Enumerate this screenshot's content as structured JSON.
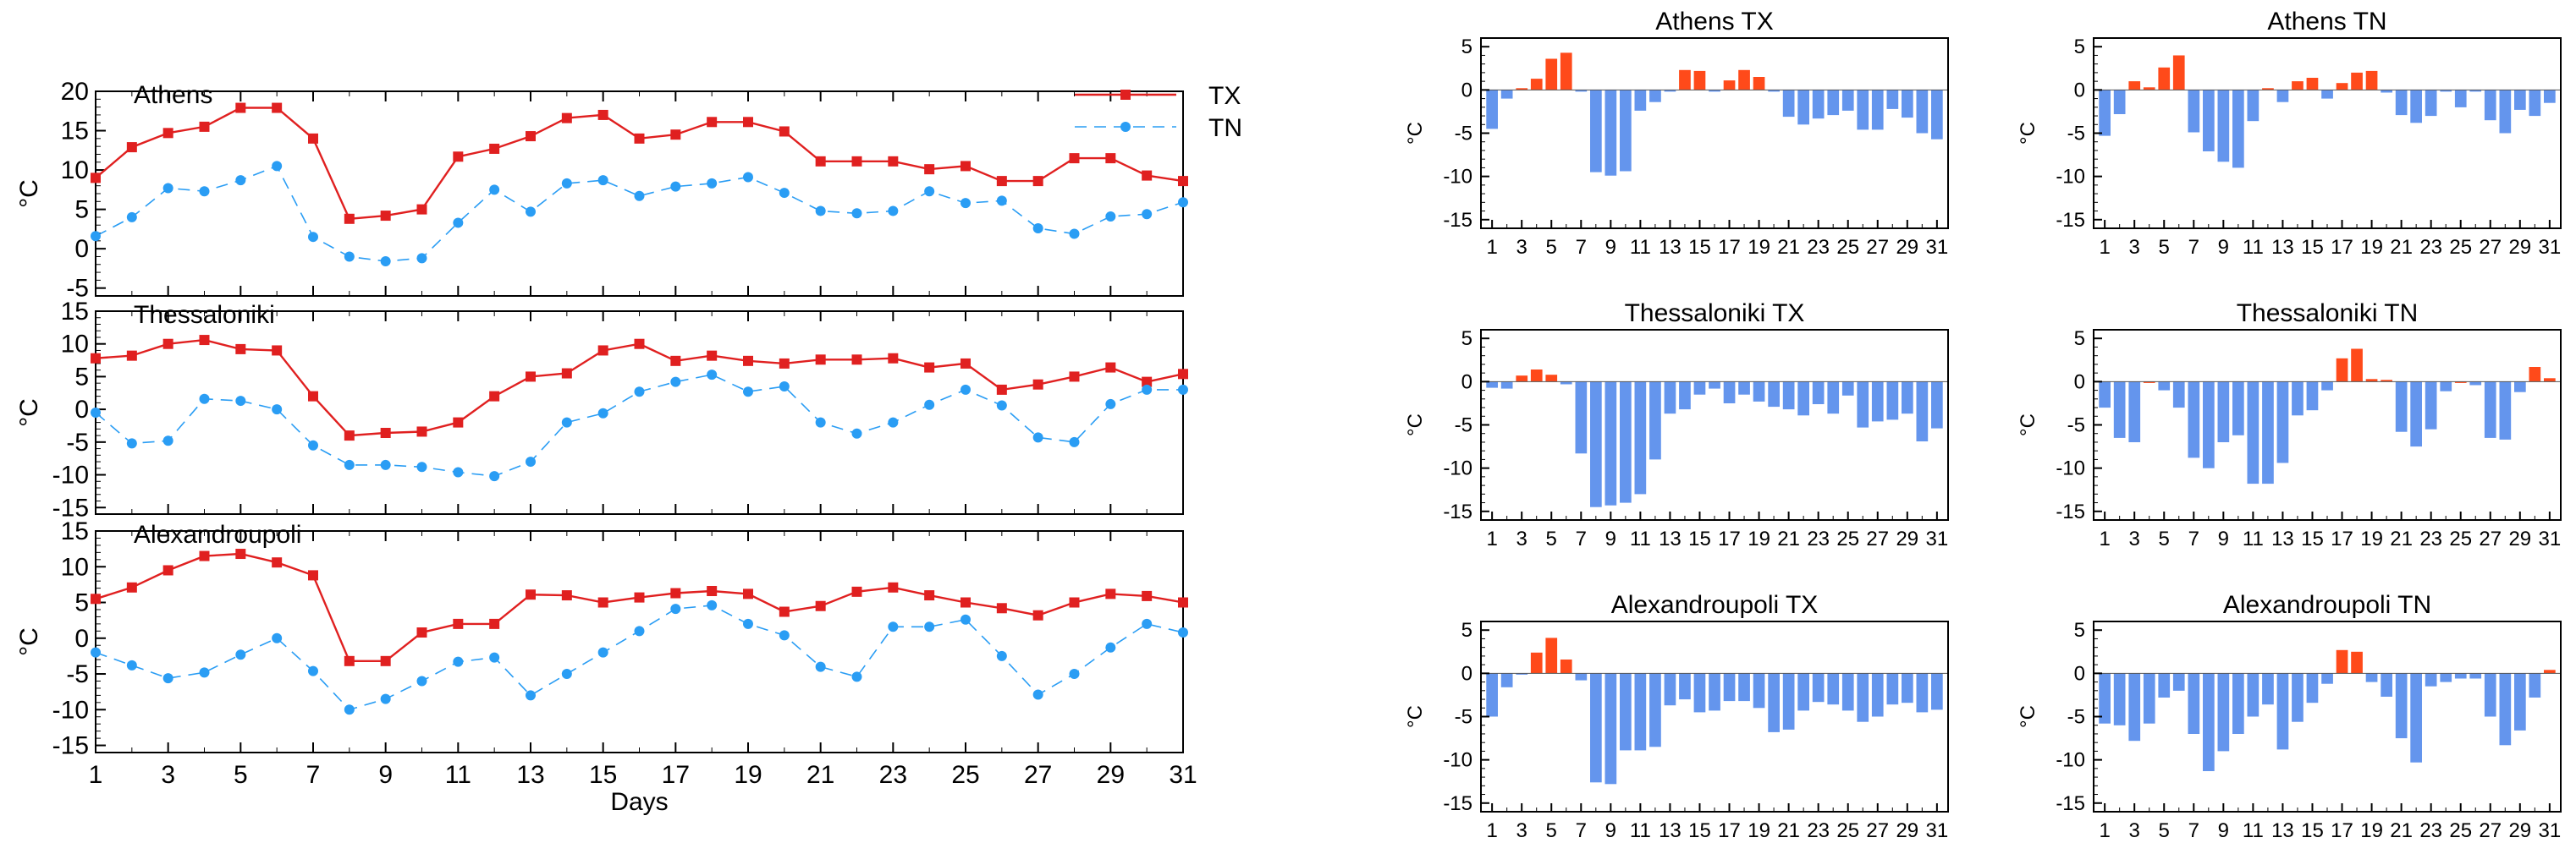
{
  "chart_data": [
    {
      "type": "line",
      "title": "Athens",
      "xlabel": "",
      "ylabel": "°C",
      "xlim": [
        1,
        31
      ],
      "ylim": [
        -6,
        20
      ],
      "yticks": [
        -5,
        0,
        5,
        10,
        15,
        20
      ],
      "xticks": [
        1,
        3,
        5,
        7,
        9,
        11,
        13,
        15,
        17,
        19,
        21,
        23,
        25,
        27,
        29,
        31
      ],
      "legend": "top-right",
      "series": [
        {
          "name": "TX",
          "color": "#e02020",
          "marker": "square",
          "dash": false,
          "values": [
            9,
            12.9,
            14.7,
            15.5,
            17.9,
            17.9,
            14,
            3.8,
            4.2,
            5,
            11.7,
            12.7,
            14.3,
            16.6,
            17,
            14,
            14.5,
            16.1,
            16.1,
            14.9,
            11.1,
            11.1,
            11.1,
            10.1,
            10.5,
            8.6,
            8.6,
            11.5,
            11.5,
            9.3,
            8.6
          ]
        },
        {
          "name": "TN",
          "color": "#2a9df4",
          "marker": "circle",
          "dash": true,
          "values": [
            1.6,
            4,
            7.7,
            7.3,
            8.7,
            10.5,
            1.5,
            -1,
            -1.6,
            -1.2,
            3.3,
            7.5,
            4.7,
            8.3,
            8.7,
            6.7,
            7.9,
            8.3,
            9.1,
            7.1,
            4.8,
            4.5,
            4.8,
            7.3,
            5.8,
            6.1,
            2.6,
            1.9,
            4.1,
            4.4,
            5.9
          ]
        }
      ]
    },
    {
      "type": "line",
      "title": "Thessaloniki",
      "xlabel": "",
      "ylabel": "°C",
      "xlim": [
        1,
        31
      ],
      "ylim": [
        -16,
        15
      ],
      "yticks": [
        -15,
        -10,
        -5,
        0,
        5,
        10,
        15
      ],
      "xticks": [
        1,
        3,
        5,
        7,
        9,
        11,
        13,
        15,
        17,
        19,
        21,
        23,
        25,
        27,
        29,
        31
      ],
      "series": [
        {
          "name": "TX",
          "color": "#e02020",
          "marker": "square",
          "dash": false,
          "values": [
            7.8,
            8.2,
            10,
            10.6,
            9.2,
            9,
            2,
            -4,
            -3.6,
            -3.4,
            -2,
            2,
            5,
            5.5,
            9,
            10,
            7.4,
            8.2,
            7.4,
            7,
            7.6,
            7.6,
            7.8,
            6.4,
            7,
            3,
            3.8,
            5,
            6.4,
            4.2,
            5.4
          ]
        },
        {
          "name": "TN",
          "color": "#2a9df4",
          "marker": "circle",
          "dash": true,
          "values": [
            -0.5,
            -5.2,
            -4.8,
            1.6,
            1.3,
            0,
            -5.5,
            -8.5,
            -8.5,
            -8.8,
            -9.6,
            -10.2,
            -8,
            -2,
            -0.6,
            2.7,
            4.2,
            5.3,
            2.7,
            3.5,
            -2,
            -3.7,
            -2,
            0.7,
            3,
            0.6,
            -4.3,
            -5,
            0.8,
            3,
            3
          ]
        }
      ]
    },
    {
      "type": "line",
      "title": "Alexandroupoli",
      "xlabel": "Days",
      "ylabel": "°C",
      "xlim": [
        1,
        31
      ],
      "ylim": [
        -16,
        15
      ],
      "yticks": [
        -15,
        -10,
        -5,
        0,
        5,
        10,
        15
      ],
      "xticks": [
        1,
        3,
        5,
        7,
        9,
        11,
        13,
        15,
        17,
        19,
        21,
        23,
        25,
        27,
        29,
        31
      ],
      "series": [
        {
          "name": "TX",
          "color": "#e02020",
          "marker": "square",
          "dash": false,
          "values": [
            5.5,
            7.1,
            9.5,
            11.5,
            11.8,
            10.6,
            8.8,
            -3.2,
            -3.2,
            0.8,
            2,
            2,
            6.1,
            6,
            5,
            5.7,
            6.3,
            6.6,
            6.2,
            3.7,
            4.5,
            6.5,
            7.1,
            6,
            5,
            4.2,
            3.2,
            5,
            6.2,
            5.9,
            5
          ]
        },
        {
          "name": "TN",
          "color": "#2a9df4",
          "marker": "circle",
          "dash": true,
          "values": [
            -2,
            -3.8,
            -5.6,
            -4.8,
            -2.3,
            0,
            -4.6,
            -10,
            -8.5,
            -6,
            -3.3,
            -2.7,
            -8,
            -5,
            -2,
            1,
            4.1,
            4.6,
            2,
            0.4,
            -4,
            -5.4,
            1.6,
            1.6,
            2.6,
            -2.5,
            -7.9,
            -5,
            -1.3,
            2,
            0.8
          ]
        }
      ]
    },
    {
      "type": "bar",
      "title": "Athens TX",
      "ylabel": "°C",
      "ylim": [
        -16,
        6
      ],
      "yticks": [
        5,
        0,
        -5,
        -10,
        -15
      ],
      "categories": [
        1,
        2,
        3,
        4,
        5,
        6,
        7,
        8,
        9,
        10,
        11,
        12,
        13,
        14,
        15,
        16,
        17,
        18,
        19,
        20,
        21,
        22,
        23,
        24,
        25,
        26,
        27,
        28,
        29,
        30,
        31
      ],
      "xticklabels": [
        1,
        3,
        5,
        7,
        9,
        11,
        13,
        15,
        17,
        19,
        21,
        23,
        25,
        27,
        29,
        31
      ],
      "positive_color": "#ff4a1a",
      "negative_color": "#6495ed",
      "values": [
        -4.5,
        -1,
        0.2,
        1.3,
        3.6,
        4.3,
        -0.2,
        -9.5,
        -9.9,
        -9.4,
        -2.4,
        -1.4,
        -0.2,
        2.3,
        2.2,
        -0.2,
        1.1,
        2.3,
        1.5,
        -0.2,
        -3.1,
        -4,
        -3.3,
        -2.9,
        -2.4,
        -4.6,
        -4.6,
        -2.2,
        -3.2,
        -5,
        -5.7
      ]
    },
    {
      "type": "bar",
      "title": "Athens TN",
      "ylabel": "°C",
      "ylim": [
        -16,
        6
      ],
      "yticks": [
        5,
        0,
        -5,
        -10,
        -15
      ],
      "categories": [
        1,
        2,
        3,
        4,
        5,
        6,
        7,
        8,
        9,
        10,
        11,
        12,
        13,
        14,
        15,
        16,
        17,
        18,
        19,
        20,
        21,
        22,
        23,
        24,
        25,
        26,
        27,
        28,
        29,
        30,
        31
      ],
      "xticklabels": [
        1,
        3,
        5,
        7,
        9,
        11,
        13,
        15,
        17,
        19,
        21,
        23,
        25,
        27,
        29,
        31
      ],
      "positive_color": "#ff4a1a",
      "negative_color": "#6495ed",
      "values": [
        -5.3,
        -2.8,
        1,
        0.3,
        2.6,
        4,
        -4.9,
        -7.1,
        -8.3,
        -9,
        -3.6,
        0.2,
        -1.4,
        1,
        1.4,
        -1,
        0.8,
        2,
        2.2,
        -0.3,
        -2.9,
        -3.8,
        -3,
        -0.2,
        -2,
        -0.2,
        -3.5,
        -5,
        -2.3,
        -3,
        -1.5
      ]
    },
    {
      "type": "bar",
      "title": "Thessaloniki TX",
      "ylabel": "°C",
      "ylim": [
        -16,
        6
      ],
      "yticks": [
        5,
        0,
        -5,
        -10,
        -15
      ],
      "categories": [
        1,
        2,
        3,
        4,
        5,
        6,
        7,
        8,
        9,
        10,
        11,
        12,
        13,
        14,
        15,
        16,
        17,
        18,
        19,
        20,
        21,
        22,
        23,
        24,
        25,
        26,
        27,
        28,
        29,
        30,
        31
      ],
      "xticklabels": [
        1,
        3,
        5,
        7,
        9,
        11,
        13,
        15,
        17,
        19,
        21,
        23,
        25,
        27,
        29,
        31
      ],
      "positive_color": "#ff4a1a",
      "negative_color": "#6495ed",
      "values": [
        -0.7,
        -0.8,
        0.7,
        1.4,
        0.8,
        -0.3,
        -8.3,
        -14.5,
        -14.3,
        -14,
        -13,
        -9,
        -3.7,
        -3.2,
        -1.5,
        -0.8,
        -2.5,
        -1.5,
        -2.3,
        -2.9,
        -3.2,
        -3.9,
        -2.6,
        -3.7,
        -1.6,
        -5.3,
        -4.6,
        -4.4,
        -3.7,
        -6.9,
        -5.4
      ]
    },
    {
      "type": "bar",
      "title": "Thessaloniki TN",
      "ylabel": "°C",
      "ylim": [
        -16,
        6
      ],
      "yticks": [
        5,
        0,
        -5,
        -10,
        -15
      ],
      "categories": [
        1,
        2,
        3,
        4,
        5,
        6,
        7,
        8,
        9,
        10,
        11,
        12,
        13,
        14,
        15,
        16,
        17,
        18,
        19,
        20,
        21,
        22,
        23,
        24,
        25,
        26,
        27,
        28,
        29,
        30,
        31
      ],
      "xticklabels": [
        1,
        3,
        5,
        7,
        9,
        11,
        13,
        15,
        17,
        19,
        21,
        23,
        25,
        27,
        29,
        31
      ],
      "positive_color": "#ff4a1a",
      "negative_color": "#6495ed",
      "values": [
        -3,
        -6.5,
        -7,
        0,
        -1,
        -3,
        -8.8,
        -10,
        -7,
        -6.2,
        -11.8,
        -11.8,
        -9.4,
        -3.9,
        -3.3,
        -1,
        2.7,
        3.8,
        0.3,
        0.2,
        -5.8,
        -7.5,
        -5.5,
        -1.1,
        0,
        -0.4,
        -6.5,
        -6.7,
        -1.2,
        1.7,
        0.4
      ]
    },
    {
      "type": "bar",
      "title": "Alexandroupoli TX",
      "ylabel": "°C",
      "ylim": [
        -16,
        6
      ],
      "yticks": [
        5,
        0,
        -5,
        -10,
        -15
      ],
      "categories": [
        1,
        2,
        3,
        4,
        5,
        6,
        7,
        8,
        9,
        10,
        11,
        12,
        13,
        14,
        15,
        16,
        17,
        18,
        19,
        20,
        21,
        22,
        23,
        24,
        25,
        26,
        27,
        28,
        29,
        30,
        31
      ],
      "xticklabels": [
        1,
        3,
        5,
        7,
        9,
        11,
        13,
        15,
        17,
        19,
        21,
        23,
        25,
        27,
        29,
        31
      ],
      "positive_color": "#ff4a1a",
      "negative_color": "#6495ed",
      "values": [
        -5,
        -1.6,
        -0.1,
        2.4,
        4.1,
        1.6,
        -0.8,
        -12.6,
        -12.8,
        -8.9,
        -8.9,
        -8.5,
        -3.7,
        -3,
        -4.5,
        -4.3,
        -3.2,
        -3.2,
        -4,
        -6.8,
        -6.5,
        -4.3,
        -3.3,
        -3.6,
        -4.3,
        -5.6,
        -5,
        -3.6,
        -3.4,
        -4.5,
        -4.2
      ]
    },
    {
      "type": "bar",
      "title": "Alexandroupoli TN",
      "ylabel": "°C",
      "ylim": [
        -16,
        6
      ],
      "yticks": [
        5,
        0,
        -5,
        -10,
        -15
      ],
      "categories": [
        1,
        2,
        3,
        4,
        5,
        6,
        7,
        8,
        9,
        10,
        11,
        12,
        13,
        14,
        15,
        16,
        17,
        18,
        19,
        20,
        21,
        22,
        23,
        24,
        25,
        26,
        27,
        28,
        29,
        30,
        31
      ],
      "xticklabels": [
        1,
        3,
        5,
        7,
        9,
        11,
        13,
        15,
        17,
        19,
        21,
        23,
        25,
        27,
        29,
        31
      ],
      "positive_color": "#ff4a1a",
      "negative_color": "#6495ed",
      "values": [
        -5.8,
        -6,
        -7.8,
        -5.8,
        -2.8,
        -2,
        -7,
        -11.3,
        -9,
        -7,
        -5,
        -3.6,
        -8.8,
        -5.6,
        -3.4,
        -1.2,
        2.7,
        2.5,
        -1,
        -2.7,
        -7.5,
        -10.3,
        -1.5,
        -1,
        -0.6,
        -0.6,
        -5,
        -8.3,
        -6.6,
        -2.8,
        0.4
      ]
    }
  ]
}
